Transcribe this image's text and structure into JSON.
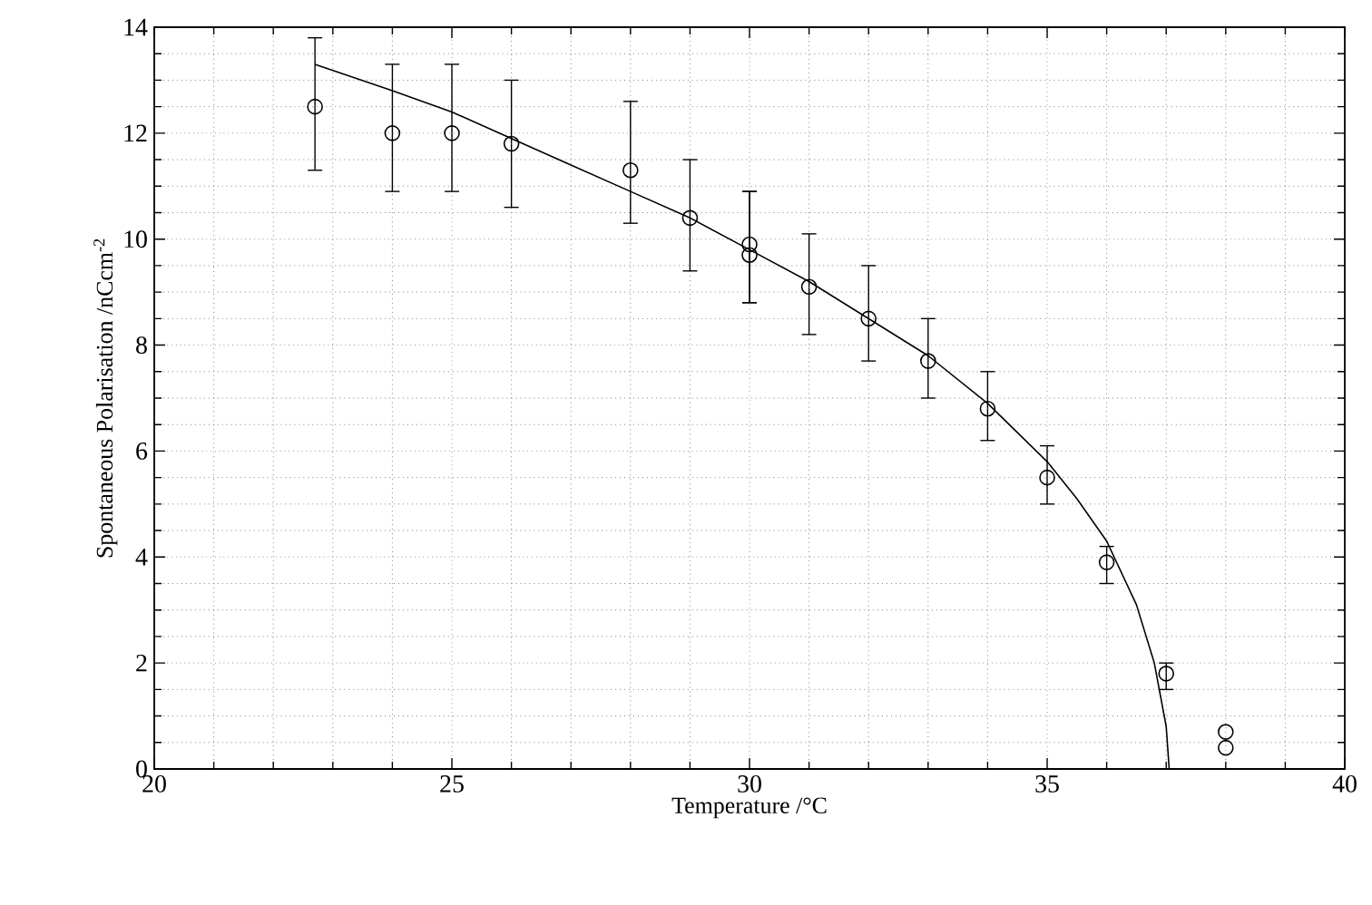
{
  "chart_data": {
    "type": "scatter",
    "xlabel": "Temperature /°C",
    "ylabel": "Spontaneous Polarisation /nCcm$^{-2}$",
    "xlim": [
      20,
      40
    ],
    "ylim": [
      0,
      14
    ],
    "xticks": [
      20,
      25,
      30,
      35,
      40
    ],
    "yticks": [
      0,
      2,
      4,
      6,
      8,
      10,
      12,
      14
    ],
    "grid": true,
    "marker": "circle",
    "series": [
      {
        "color": "#000000",
        "x": [
          22.7,
          24,
          25,
          26,
          28,
          29,
          30,
          30,
          31,
          32,
          33,
          34,
          35,
          36,
          37,
          38,
          38
        ],
        "values": [
          12.5,
          12.0,
          12.0,
          11.8,
          11.3,
          10.4,
          9.9,
          9.7,
          9.1,
          8.5,
          7.7,
          6.8,
          5.5,
          3.9,
          1.8,
          0.7,
          0.4
        ],
        "errors": [
          [
            11.3,
            13.8
          ],
          [
            10.9,
            13.3
          ],
          [
            10.9,
            13.3
          ],
          [
            10.6,
            13.0
          ],
          [
            10.3,
            12.6
          ],
          [
            9.4,
            11.5
          ],
          [
            8.8,
            10.9
          ],
          [
            8.8,
            10.9
          ],
          [
            8.2,
            10.1
          ],
          [
            7.7,
            9.5
          ],
          [
            7.0,
            8.5
          ],
          [
            6.2,
            7.5
          ],
          [
            5.0,
            6.1
          ],
          [
            3.5,
            4.2
          ],
          [
            1.5,
            2.0
          ],
          null,
          null
        ]
      },
      {
        "type": "line",
        "color": "#000000",
        "marker": "none",
        "x": [
          22.7,
          24,
          25,
          26,
          27,
          28,
          29,
          30,
          31,
          32,
          33,
          34,
          35,
          35.5,
          36,
          36.5,
          36.8,
          37.0,
          37.05
        ],
        "values": [
          13.3,
          12.8,
          12.4,
          11.9,
          11.4,
          10.9,
          10.4,
          9.8,
          9.2,
          8.5,
          7.8,
          6.9,
          5.8,
          5.1,
          4.3,
          3.1,
          2.0,
          0.8,
          0
        ]
      }
    ]
  }
}
